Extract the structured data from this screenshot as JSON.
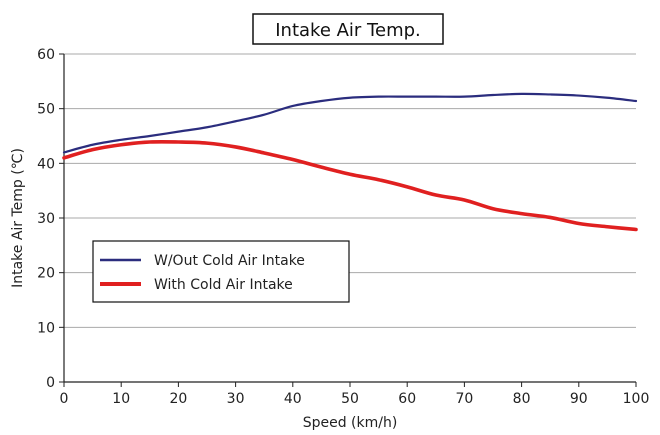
{
  "chart_data": {
    "type": "line",
    "title": "Intake Air Temp.",
    "xlabel": "Speed (km/h)",
    "ylabel": "Intake Air Temp (℃)",
    "xlim": [
      0,
      100
    ],
    "ylim": [
      0,
      60
    ],
    "xticks": [
      0,
      10,
      20,
      30,
      40,
      50,
      60,
      70,
      80,
      90,
      100
    ],
    "yticks": [
      0,
      10,
      20,
      30,
      40,
      50,
      60
    ],
    "grid": "horizontal",
    "legend_position": "lower-left",
    "series": [
      {
        "name": "W/Out Cold Air Intake",
        "color": "#2b2d7e",
        "x": [
          0,
          5,
          10,
          15,
          20,
          25,
          30,
          35,
          40,
          45,
          50,
          55,
          60,
          65,
          70,
          75,
          80,
          85,
          90,
          95,
          100
        ],
        "y": [
          42.0,
          43.4,
          44.3,
          45.0,
          45.8,
          46.6,
          47.7,
          48.9,
          50.5,
          51.4,
          52.0,
          52.2,
          52.2,
          52.2,
          52.2,
          52.5,
          52.7,
          52.6,
          52.4,
          52.0,
          51.4
        ]
      },
      {
        "name": "With Cold Air Intake",
        "color": "#e02020",
        "x": [
          0,
          5,
          10,
          15,
          20,
          25,
          30,
          35,
          40,
          45,
          50,
          55,
          60,
          65,
          70,
          75,
          80,
          85,
          90,
          95,
          100
        ],
        "y": [
          41.0,
          42.5,
          43.4,
          43.9,
          43.9,
          43.7,
          43.0,
          41.9,
          40.7,
          39.3,
          38.0,
          37.0,
          35.7,
          34.2,
          33.3,
          31.7,
          30.8,
          30.1,
          29.0,
          28.4,
          27.9
        ]
      }
    ]
  }
}
